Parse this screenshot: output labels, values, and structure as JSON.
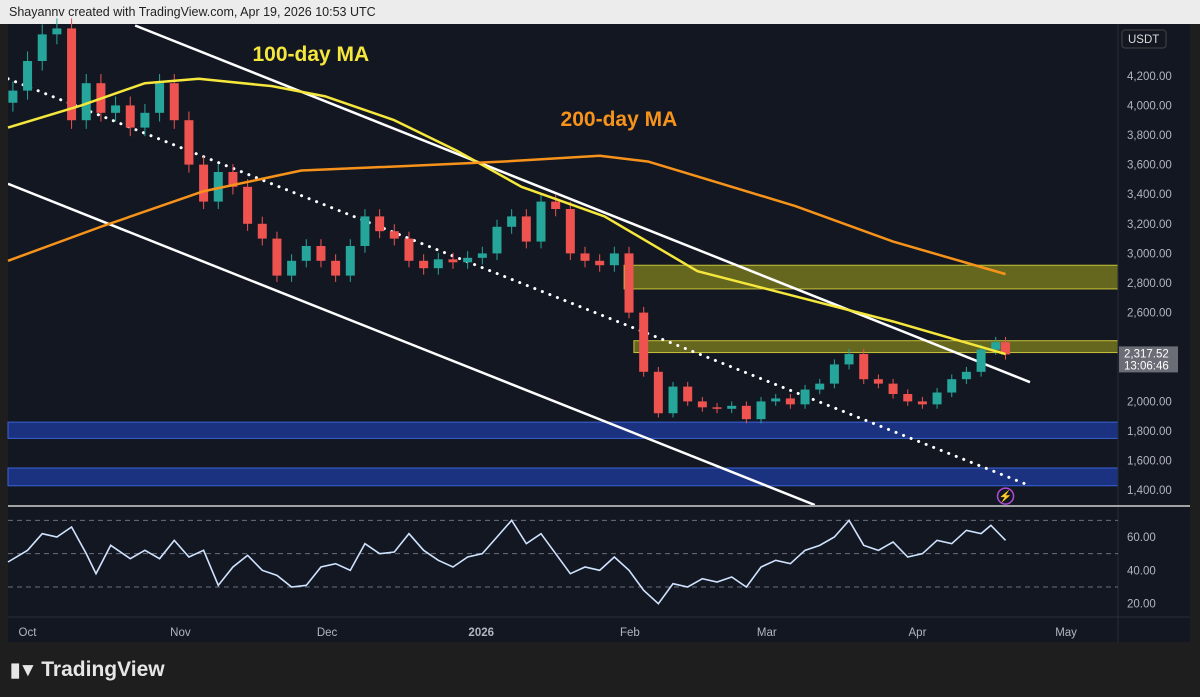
{
  "header": {
    "caption": "Shayannv created with TradingView.com, Apr 19, 2026 10:53 UTC"
  },
  "logo": {
    "text": "TradingView",
    "mark": "17"
  },
  "colors": {
    "background": "#131722",
    "up": "#26a69a",
    "down": "#ef5350",
    "ma100": "#f5e73b",
    "ma200": "#f7931a",
    "zone_yellow": "#8a8a1a",
    "zone_blue": "#1e3a8a",
    "rsi": "#cfe3ff",
    "trendline": "#ffffff"
  },
  "chart_data": {
    "type": "candlestick",
    "currency_label": "USDT",
    "ylim": [
      1300,
      4550
    ],
    "yticks": [
      1400,
      1600,
      1800,
      2000,
      2200,
      2400,
      2600,
      2800,
      3000,
      3200,
      3400,
      3600,
      3800,
      4000,
      4200
    ],
    "ytick_labels": [
      "1,400.00",
      "1,600.00",
      "1,800.00",
      "2,000.00",
      "",
      "",
      "2,600.00",
      "2,800.00",
      "3,000.00",
      "3,200.00",
      "3,400.00",
      "3,600.00",
      "3,800.00",
      "4,000.00",
      "4,200.00"
    ],
    "xrange": [
      "2025-09-27",
      "2026-05-12"
    ],
    "xticks": [
      {
        "date": "2025-10-01",
        "label": "Oct"
      },
      {
        "date": "2025-11-01",
        "label": "Nov"
      },
      {
        "date": "2025-12-01",
        "label": "Dec"
      },
      {
        "date": "2026-01-01",
        "label": "2026"
      },
      {
        "date": "2026-02-01",
        "label": "Feb"
      },
      {
        "date": "2026-03-01",
        "label": "Mar"
      },
      {
        "date": "2026-04-01",
        "label": "Apr"
      },
      {
        "date": "2026-05-01",
        "label": "May"
      }
    ],
    "last_price": {
      "value": 2317.52,
      "label": "2,317.52",
      "countdown": "13:06:46"
    },
    "closes": [
      [
        "2025-09-28",
        4100
      ],
      [
        "2025-10-01",
        4300
      ],
      [
        "2025-10-04",
        4480
      ],
      [
        "2025-10-07",
        4520
      ],
      [
        "2025-10-10",
        3900
      ],
      [
        "2025-10-13",
        4150
      ],
      [
        "2025-10-16",
        3950
      ],
      [
        "2025-10-19",
        4000
      ],
      [
        "2025-10-22",
        3850
      ],
      [
        "2025-10-25",
        3950
      ],
      [
        "2025-10-28",
        4150
      ],
      [
        "2025-10-31",
        3900
      ],
      [
        "2025-11-03",
        3600
      ],
      [
        "2025-11-06",
        3350
      ],
      [
        "2025-11-09",
        3550
      ],
      [
        "2025-11-12",
        3450
      ],
      [
        "2025-11-15",
        3200
      ],
      [
        "2025-11-18",
        3100
      ],
      [
        "2025-11-21",
        2850
      ],
      [
        "2025-11-24",
        2950
      ],
      [
        "2025-11-27",
        3050
      ],
      [
        "2025-11-30",
        2950
      ],
      [
        "2025-12-03",
        2850
      ],
      [
        "2025-12-06",
        3050
      ],
      [
        "2025-12-09",
        3250
      ],
      [
        "2025-12-12",
        3150
      ],
      [
        "2025-12-15",
        3100
      ],
      [
        "2025-12-18",
        2950
      ],
      [
        "2025-12-21",
        2900
      ],
      [
        "2025-12-24",
        2960
      ],
      [
        "2025-12-27",
        2940
      ],
      [
        "2025-12-30",
        2970
      ],
      [
        "2026-01-02",
        3000
      ],
      [
        "2026-01-05",
        3180
      ],
      [
        "2026-01-08",
        3250
      ],
      [
        "2026-01-11",
        3080
      ],
      [
        "2026-01-14",
        3350
      ],
      [
        "2026-01-17",
        3300
      ],
      [
        "2026-01-20",
        3000
      ],
      [
        "2026-01-23",
        2950
      ],
      [
        "2026-01-26",
        2920
      ],
      [
        "2026-01-29",
        3000
      ],
      [
        "2026-02-01",
        2600
      ],
      [
        "2026-02-04",
        2200
      ],
      [
        "2026-02-07",
        1920
      ],
      [
        "2026-02-10",
        2100
      ],
      [
        "2026-02-13",
        2000
      ],
      [
        "2026-02-16",
        1960
      ],
      [
        "2026-02-19",
        1950
      ],
      [
        "2026-02-22",
        1970
      ],
      [
        "2026-02-25",
        1880
      ],
      [
        "2026-02-28",
        2000
      ],
      [
        "2026-03-03",
        2020
      ],
      [
        "2026-03-06",
        1980
      ],
      [
        "2026-03-09",
        2080
      ],
      [
        "2026-03-12",
        2120
      ],
      [
        "2026-03-15",
        2250
      ],
      [
        "2026-03-18",
        2320
      ],
      [
        "2026-03-21",
        2150
      ],
      [
        "2026-03-24",
        2120
      ],
      [
        "2026-03-27",
        2050
      ],
      [
        "2026-03-30",
        2000
      ],
      [
        "2026-04-02",
        1980
      ],
      [
        "2026-04-05",
        2060
      ],
      [
        "2026-04-08",
        2150
      ],
      [
        "2026-04-11",
        2200
      ],
      [
        "2026-04-14",
        2350
      ],
      [
        "2026-04-17",
        2400
      ],
      [
        "2026-04-19",
        2317.52
      ]
    ],
    "moving_averages": [
      {
        "name": "100-day MA",
        "color": "#f5e73b",
        "points": [
          [
            "2025-09-27",
            3850
          ],
          [
            "2025-10-12",
            4000
          ],
          [
            "2025-10-25",
            4150
          ],
          [
            "2025-11-05",
            4180
          ],
          [
            "2025-11-20",
            4130
          ],
          [
            "2025-12-01",
            4060
          ],
          [
            "2025-12-15",
            3900
          ],
          [
            "2025-12-28",
            3690
          ],
          [
            "2026-01-10",
            3450
          ],
          [
            "2026-01-27",
            3250
          ],
          [
            "2026-02-15",
            2880
          ],
          [
            "2026-03-07",
            2710
          ],
          [
            "2026-03-27",
            2540
          ],
          [
            "2026-04-19",
            2320
          ]
        ]
      },
      {
        "name": "200-day MA",
        "color": "#f7931a",
        "points": [
          [
            "2025-09-27",
            2950
          ],
          [
            "2025-10-16",
            3180
          ],
          [
            "2025-11-06",
            3420
          ],
          [
            "2025-11-26",
            3560
          ],
          [
            "2025-12-17",
            3590
          ],
          [
            "2026-01-06",
            3620
          ],
          [
            "2026-01-26",
            3660
          ],
          [
            "2026-02-05",
            3620
          ],
          [
            "2026-02-15",
            3520
          ],
          [
            "2026-03-07",
            3320
          ],
          [
            "2026-03-27",
            3080
          ],
          [
            "2026-04-19",
            2860
          ]
        ]
      }
    ],
    "trendlines": [
      {
        "style": "solid",
        "from": [
          "2025-10-23",
          4540
        ],
        "to": [
          "2026-04-24",
          2130
        ]
      },
      {
        "style": "solid",
        "from": [
          "2025-09-27",
          3470
        ],
        "to": [
          "2026-03-11",
          1300
        ]
      },
      {
        "style": "dotted",
        "from": [
          "2025-09-27",
          4180
        ],
        "to": [
          "2026-04-24",
          1430
        ]
      }
    ],
    "zones": [
      {
        "color": "yellow",
        "from_date": "2026-01-31",
        "low": 2760,
        "high": 2920
      },
      {
        "color": "yellow",
        "from_date": "2026-02-02",
        "low": 2330,
        "high": 2410
      },
      {
        "color": "blue",
        "from_date": "2025-09-27",
        "low": 1750,
        "high": 1860
      },
      {
        "color": "blue",
        "from_date": "2025-09-27",
        "low": 1430,
        "high": 1550
      }
    ],
    "annotations": [
      {
        "text": "100-day MA",
        "color": "#f5e73b",
        "at": [
          "2025-11-16",
          4300
        ]
      },
      {
        "text": "200-day MA",
        "color": "#f7931a",
        "at": [
          "2026-01-18",
          3860
        ]
      }
    ],
    "rsi": {
      "ylim": [
        12,
        78
      ],
      "levels": [
        70,
        50,
        30
      ],
      "ytick_labels": [
        {
          "v": 60,
          "label": "60.00"
        },
        {
          "v": 40,
          "label": "40.00"
        },
        {
          "v": 20,
          "label": "20.00"
        }
      ],
      "points": [
        [
          "2025-09-27",
          45
        ],
        [
          "2025-10-01",
          52
        ],
        [
          "2025-10-04",
          62
        ],
        [
          "2025-10-07",
          60
        ],
        [
          "2025-10-10",
          66
        ],
        [
          "2025-10-13",
          50
        ],
        [
          "2025-10-15",
          38
        ],
        [
          "2025-10-18",
          55
        ],
        [
          "2025-10-22",
          47
        ],
        [
          "2025-10-25",
          52
        ],
        [
          "2025-10-28",
          47
        ],
        [
          "2025-10-31",
          58
        ],
        [
          "2025-11-03",
          48
        ],
        [
          "2025-11-06",
          52
        ],
        [
          "2025-11-09",
          31
        ],
        [
          "2025-11-12",
          42
        ],
        [
          "2025-11-15",
          49
        ],
        [
          "2025-11-18",
          40
        ],
        [
          "2025-11-21",
          37
        ],
        [
          "2025-11-24",
          30
        ],
        [
          "2025-11-27",
          31
        ],
        [
          "2025-11-30",
          42
        ],
        [
          "2025-12-03",
          44
        ],
        [
          "2025-12-06",
          40
        ],
        [
          "2025-12-09",
          56
        ],
        [
          "2025-12-12",
          50
        ],
        [
          "2025-12-15",
          51
        ],
        [
          "2025-12-18",
          62
        ],
        [
          "2025-12-21",
          52
        ],
        [
          "2025-12-24",
          46
        ],
        [
          "2025-12-27",
          42
        ],
        [
          "2025-12-30",
          48
        ],
        [
          "2026-01-02",
          50
        ],
        [
          "2026-01-05",
          60
        ],
        [
          "2026-01-08",
          70
        ],
        [
          "2026-01-11",
          56
        ],
        [
          "2026-01-14",
          62
        ],
        [
          "2026-01-17",
          50
        ],
        [
          "2026-01-20",
          38
        ],
        [
          "2026-01-23",
          42
        ],
        [
          "2026-01-26",
          40
        ],
        [
          "2026-01-29",
          48
        ],
        [
          "2026-02-01",
          40
        ],
        [
          "2026-02-04",
          28
        ],
        [
          "2026-02-07",
          20
        ],
        [
          "2026-02-10",
          32
        ],
        [
          "2026-02-13",
          30
        ],
        [
          "2026-02-16",
          35
        ],
        [
          "2026-02-19",
          33
        ],
        [
          "2026-02-22",
          36
        ],
        [
          "2026-02-25",
          30
        ],
        [
          "2026-02-28",
          42
        ],
        [
          "2026-03-03",
          46
        ],
        [
          "2026-03-06",
          44
        ],
        [
          "2026-03-09",
          52
        ],
        [
          "2026-03-12",
          55
        ],
        [
          "2026-03-15",
          60
        ],
        [
          "2026-03-18",
          70
        ],
        [
          "2026-03-21",
          55
        ],
        [
          "2026-03-24",
          52
        ],
        [
          "2026-03-27",
          57
        ],
        [
          "2026-03-30",
          48
        ],
        [
          "2026-04-02",
          50
        ],
        [
          "2026-04-05",
          58
        ],
        [
          "2026-04-08",
          56
        ],
        [
          "2026-04-11",
          64
        ],
        [
          "2026-04-14",
          62
        ],
        [
          "2026-04-16",
          67
        ],
        [
          "2026-04-19",
          58
        ]
      ]
    }
  }
}
